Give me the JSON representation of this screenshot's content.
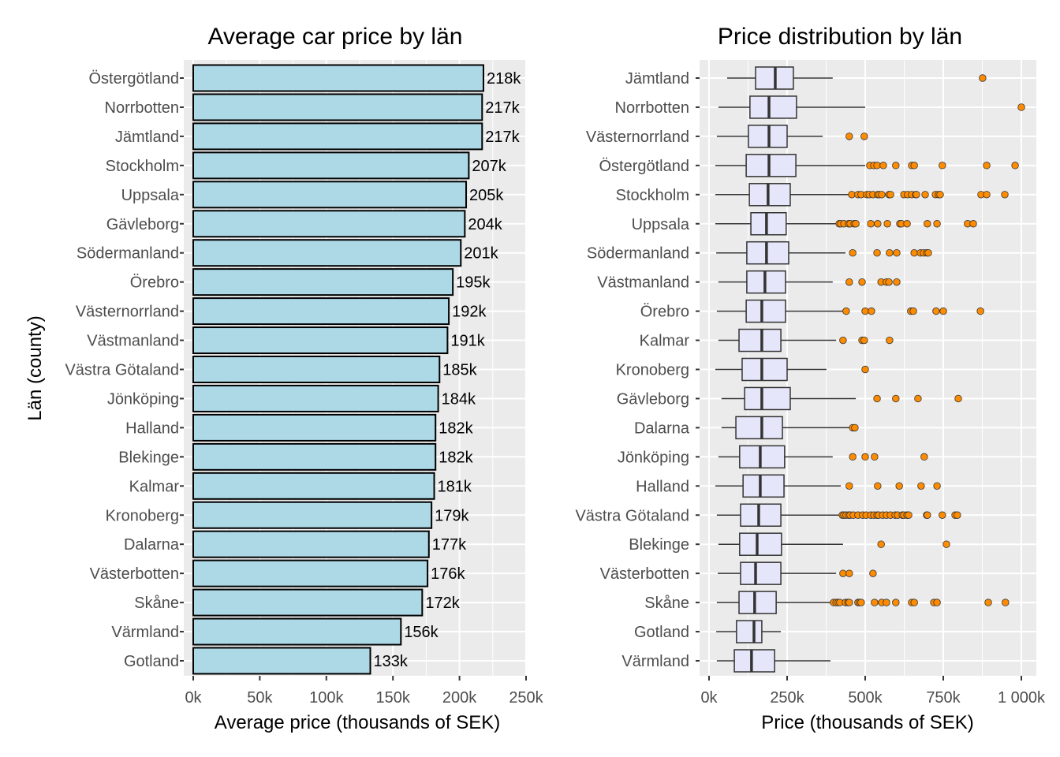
{
  "chart_data": [
    {
      "type": "bar",
      "orientation": "horizontal",
      "title": "Average car price by län",
      "xlabel": "Average price (thousands of SEK)",
      "ylabel": "Län (county)",
      "xlim": [
        0,
        250
      ],
      "xticks": [
        0,
        50,
        100,
        150,
        200,
        250
      ],
      "xtick_labels": [
        "0k",
        "50k",
        "100k",
        "150k",
        "200k",
        "250k"
      ],
      "grid": true,
      "bar_color": "#add8e6",
      "bar_edge_color": "#000000",
      "categories": [
        "Östergötland",
        "Norrbotten",
        "Jämtland",
        "Stockholm",
        "Uppsala",
        "Gävleborg",
        "Södermanland",
        "Örebro",
        "Västernorrland",
        "Västmanland",
        "Västra Götaland",
        "Jönköping",
        "Halland",
        "Blekinge",
        "Kalmar",
        "Kronoberg",
        "Dalarna",
        "Västerbotten",
        "Skåne",
        "Värmland",
        "Gotland"
      ],
      "values": [
        218,
        217,
        217,
        207,
        205,
        204,
        201,
        195,
        192,
        191,
        185,
        184,
        182,
        182,
        181,
        179,
        177,
        176,
        172,
        156,
        133
      ],
      "data_labels": [
        "218k",
        "217k",
        "217k",
        "207k",
        "205k",
        "204k",
        "201k",
        "195k",
        "192k",
        "191k",
        "185k",
        "184k",
        "182k",
        "182k",
        "181k",
        "179k",
        "177k",
        "176k",
        "172k",
        "156k",
        "133k"
      ]
    },
    {
      "type": "boxplot",
      "orientation": "horizontal",
      "title": "Price distribution by län",
      "xlabel": "Price (thousands of SEK)",
      "ylabel": "",
      "xlim": [
        0,
        1000
      ],
      "xticks": [
        0,
        250,
        500,
        750,
        1000
      ],
      "xtick_labels": [
        "0k",
        "250k",
        "500k",
        "750k",
        "1 000k"
      ],
      "grid": true,
      "box_color": "#e6e6fa",
      "outlier_color": "#ff8c00",
      "categories": [
        "Jämtland",
        "Norrbotten",
        "Västernorrland",
        "Östergötland",
        "Stockholm",
        "Uppsala",
        "Södermanland",
        "Västmanland",
        "Örebro",
        "Kalmar",
        "Kronoberg",
        "Gävleborg",
        "Dalarna",
        "Jönköping",
        "Halland",
        "Västra Götaland",
        "Blekinge",
        "Västerbotten",
        "Skåne",
        "Gotland",
        "Värmland"
      ],
      "boxes": [
        {
          "name": "Jämtland",
          "whisker_low": 58,
          "q1": 149,
          "median": 212,
          "q3": 270,
          "whisker_high": 396,
          "outliers": [
            876
          ]
        },
        {
          "name": "Norrbotten",
          "whisker_low": 30,
          "q1": 131,
          "median": 192,
          "q3": 280,
          "whisker_high": 500,
          "outliers": [
            1000
          ]
        },
        {
          "name": "Västernorrland",
          "whisker_low": 25,
          "q1": 126,
          "median": 192,
          "q3": 250,
          "whisker_high": 364,
          "outliers": [
            449,
            497
          ]
        },
        {
          "name": "Östergötland",
          "whisker_low": 20,
          "q1": 119,
          "median": 192,
          "q3": 278,
          "whisker_high": 500,
          "outliers": [
            515,
            528,
            538,
            558,
            598,
            649,
            657,
            747,
            889,
            980
          ]
        },
        {
          "name": "Stockholm",
          "whisker_low": 20,
          "q1": 129,
          "median": 189,
          "q3": 260,
          "whisker_high": 449,
          "outliers": [
            457,
            477,
            487,
            505,
            513,
            525,
            540,
            545,
            553,
            576,
            581,
            624,
            636,
            649,
            662,
            664,
            692,
            725,
            735,
            740,
            871,
            889,
            947
          ]
        },
        {
          "name": "Uppsala",
          "whisker_low": 20,
          "q1": 134,
          "median": 184,
          "q3": 247,
          "whisker_high": 407,
          "outliers": [
            417,
            422,
            432,
            447,
            452,
            465,
            470,
            518,
            540,
            571,
            611,
            616,
            634,
            699,
            730,
            828,
            846
          ]
        },
        {
          "name": "Södermanland",
          "whisker_low": 23,
          "q1": 121,
          "median": 184,
          "q3": 255,
          "whisker_high": 437,
          "outliers": [
            460,
            538,
            578,
            601,
            657,
            677,
            687,
            697,
            702
          ]
        },
        {
          "name": "Västmanland",
          "whisker_low": 30,
          "q1": 121,
          "median": 179,
          "q3": 245,
          "whisker_high": 396,
          "outliers": [
            449,
            490,
            551,
            568,
            576,
            601
          ]
        },
        {
          "name": "Örebro",
          "whisker_low": 25,
          "q1": 119,
          "median": 169,
          "q3": 245,
          "whisker_high": 429,
          "outliers": [
            439,
            500,
            520,
            646,
            654,
            727,
            750,
            869
          ]
        },
        {
          "name": "Kalmar",
          "whisker_low": 30,
          "q1": 96,
          "median": 169,
          "q3": 230,
          "whisker_high": 407,
          "outliers": [
            429,
            490,
            497,
            578
          ]
        },
        {
          "name": "Kronoberg",
          "whisker_low": 20,
          "q1": 106,
          "median": 169,
          "q3": 250,
          "whisker_high": 376,
          "outliers": [
            500
          ]
        },
        {
          "name": "Gävleborg",
          "whisker_low": 40,
          "q1": 114,
          "median": 169,
          "q3": 260,
          "whisker_high": 470,
          "outliers": [
            538,
            598,
            669,
            798
          ]
        },
        {
          "name": "Dalarna",
          "whisker_low": 40,
          "q1": 86,
          "median": 169,
          "q3": 235,
          "whisker_high": 452,
          "outliers": [
            460,
            467
          ]
        },
        {
          "name": "Jönköping",
          "whisker_low": 30,
          "q1": 98,
          "median": 164,
          "q3": 242,
          "whisker_high": 396,
          "outliers": [
            460,
            500,
            530,
            689
          ]
        },
        {
          "name": "Halland",
          "whisker_low": 20,
          "q1": 109,
          "median": 164,
          "q3": 240,
          "whisker_high": 422,
          "outliers": [
            449,
            540,
            609,
            679,
            730
          ]
        },
        {
          "name": "Västra Götaland",
          "whisker_low": 25,
          "q1": 101,
          "median": 159,
          "q3": 230,
          "whisker_high": 419,
          "outliers": [
            427,
            432,
            439,
            447,
            452,
            462,
            477,
            492,
            503,
            518,
            528,
            538,
            543,
            556,
            568,
            581,
            596,
            604,
            619,
            624,
            634,
            639,
            697,
            699,
            747,
            788,
            795
          ]
        },
        {
          "name": "Blekinge",
          "whisker_low": 30,
          "q1": 98,
          "median": 154,
          "q3": 232,
          "whisker_high": 429,
          "outliers": [
            551,
            760
          ]
        },
        {
          "name": "Västerbotten",
          "whisker_low": 28,
          "q1": 101,
          "median": 149,
          "q3": 230,
          "whisker_high": 407,
          "outliers": [
            429,
            449,
            525
          ]
        },
        {
          "name": "Skåne",
          "whisker_low": 25,
          "q1": 96,
          "median": 146,
          "q3": 215,
          "whisker_high": 389,
          "outliers": [
            399,
            407,
            414,
            419,
            437,
            445,
            449,
            477,
            482,
            487,
            530,
            553,
            568,
            598,
            649,
            657,
            720,
            730,
            894,
            949
          ]
        },
        {
          "name": "Gotland",
          "whisker_low": 23,
          "q1": 88,
          "median": 144,
          "q3": 169,
          "whisker_high": 230,
          "outliers": []
        },
        {
          "name": "Värmland",
          "whisker_low": 25,
          "q1": 81,
          "median": 136,
          "q3": 210,
          "whisker_high": 389,
          "outliers": []
        }
      ]
    }
  ]
}
